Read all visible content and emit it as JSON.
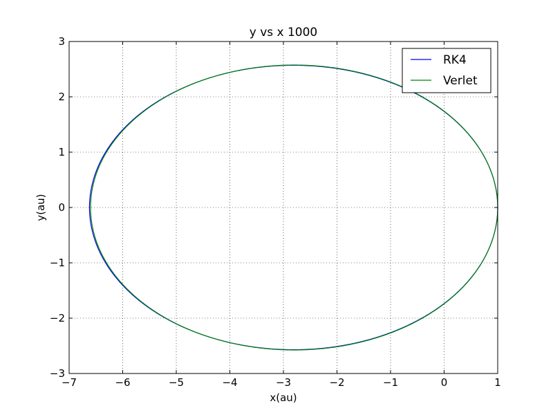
{
  "chart_data": {
    "type": "line",
    "title": "y vs x  1000",
    "xlabel": "x(au)",
    "ylabel": "y(au)",
    "xlim": [
      -7,
      1
    ],
    "ylim": [
      -3,
      3
    ],
    "xticks": [
      -7,
      -6,
      -5,
      -4,
      -3,
      -2,
      -1,
      0,
      1
    ],
    "yticks": [
      -3,
      -2,
      -1,
      0,
      1,
      2,
      3
    ],
    "xtick_labels": [
      "−7",
      "−6",
      "−5",
      "−4",
      "−3",
      "−2",
      "−1",
      "0",
      "1"
    ],
    "ytick_labels": [
      "−3",
      "−2",
      "−1",
      "0",
      "1",
      "2",
      "3"
    ],
    "grid": true,
    "legend_position": "top-right",
    "series": [
      {
        "name": "RK4",
        "color": "#0000ff",
        "shape": "ellipse",
        "center": [
          -2.81,
          0
        ],
        "semi_axes": [
          3.81,
          2.57
        ],
        "points": 1000
      },
      {
        "name": "Verlet",
        "color": "#008000",
        "shape": "ellipse",
        "center": [
          -2.8,
          0
        ],
        "semi_axes": [
          3.8,
          2.575
        ],
        "points": 1000
      }
    ]
  }
}
